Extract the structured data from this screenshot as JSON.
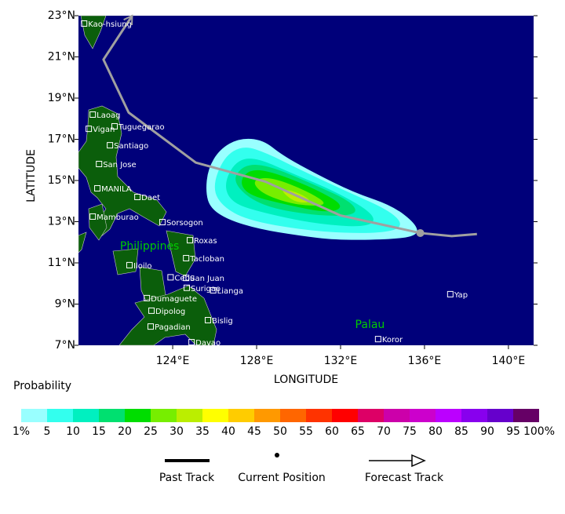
{
  "map": {
    "lonlim": [
      119.51,
      141.2
    ],
    "latlim": [
      7,
      23
    ],
    "lon_ticks": [
      {
        "value": 124,
        "label": "124°E"
      },
      {
        "value": 128,
        "label": "128°E"
      },
      {
        "value": 132,
        "label": "132°E"
      },
      {
        "value": 136,
        "label": "136°E"
      },
      {
        "value": 140,
        "label": "140°E"
      }
    ],
    "lat_ticks": [
      {
        "value": 7,
        "label": "7°N"
      },
      {
        "value": 9,
        "label": "9°N"
      },
      {
        "value": 11,
        "label": "11°N"
      },
      {
        "value": 13,
        "label": "13°N"
      },
      {
        "value": 15,
        "label": "15°N"
      },
      {
        "value": 17,
        "label": "17°N"
      },
      {
        "value": 19,
        "label": "19°N"
      },
      {
        "value": 21,
        "label": "21°N"
      },
      {
        "value": 23,
        "label": "23°N"
      }
    ],
    "x_label": "LONGITUDE",
    "y_label": "LATITUDE",
    "sea_color": "#00007a",
    "track_color": "#a0a0a0",
    "past_track": {
      "lon": [
        138.5,
        137.3,
        135.8
      ],
      "lat": [
        12.4,
        12.3,
        12.45
      ]
    },
    "current_position": {
      "lon": 135.8,
      "lat": 12.45
    },
    "forecast_track": {
      "lon": [
        135.8,
        132.0,
        128.4,
        125.1,
        121.9,
        120.7,
        122.07
      ],
      "lat": [
        12.45,
        13.3,
        14.95,
        15.87,
        18.3,
        20.87,
        23.0
      ]
    },
    "contours": [
      {
        "level": 1,
        "lon": [
          125.57,
          125.68,
          126.24,
          127.18,
          128.3,
          129.23,
          130.73,
          132.6,
          134.47,
          135.59,
          135.7,
          134.47,
          131.85,
          129.98,
          128.11,
          126.62,
          125.79
        ],
        "lat": [
          14.43,
          15.57,
          16.52,
          17.06,
          16.98,
          16.22,
          15.38,
          14.43,
          13.78,
          12.9,
          12.33,
          12.14,
          12.1,
          12.33,
          12.64,
          13.1,
          13.67
        ]
      },
      {
        "level": 5,
        "lon": [
          125.87,
          126.43,
          127.36,
          128.49,
          129.98,
          132.22,
          134.47,
          135.03,
          133.72,
          130.73,
          127.74,
          126.43
        ],
        "lat": [
          14.62,
          16.14,
          16.71,
          16.33,
          15.57,
          14.5,
          13.48,
          12.71,
          12.41,
          12.52,
          13.02,
          13.67
        ]
      },
      {
        "level": 10,
        "lon": [
          126.43,
          126.99,
          127.93,
          129.61,
          131.85,
          133.72,
          133.35,
          130.73,
          128.11,
          126.8
        ],
        "lat": [
          14.81,
          15.95,
          16.14,
          15.38,
          14.43,
          13.29,
          12.71,
          12.9,
          13.48,
          13.93
        ]
      },
      {
        "level": 15,
        "lon": [
          126.8,
          127.36,
          128.49,
          130.73,
          132.6,
          132.79,
          130.73,
          128.11
        ],
        "lat": [
          14.92,
          15.76,
          15.76,
          14.81,
          13.93,
          13.29,
          13.29,
          13.78
        ]
      },
      {
        "level": 20,
        "lon": [
          127.18,
          127.74,
          128.86,
          130.73,
          132.22,
          131.48,
          129.23,
          127.55
        ],
        "lat": [
          15.0,
          15.57,
          15.38,
          14.62,
          13.78,
          13.4,
          13.86,
          14.31
        ]
      },
      {
        "level": 25,
        "lon": [
          127.74,
          128.67,
          130.54,
          131.48,
          129.98,
          128.3
        ],
        "lat": [
          15.0,
          15.19,
          14.43,
          13.78,
          13.78,
          14.31
        ]
      },
      {
        "level": 30,
        "lon": [
          129.05,
          129.98,
          130.73,
          129.79
        ],
        "lat": [
          14.62,
          14.43,
          13.93,
          13.93
        ]
      }
    ],
    "cities": [
      {
        "name": "Kao-hsiung",
        "lon": 119.78,
        "lat": 22.62
      },
      {
        "name": "Laoag",
        "lon": 120.19,
        "lat": 18.2
      },
      {
        "name": "Tuguegarao",
        "lon": 121.23,
        "lat": 17.63
      },
      {
        "name": "Vigan",
        "lon": 120.0,
        "lat": 17.51
      },
      {
        "name": "Santiago",
        "lon": 121.01,
        "lat": 16.71
      },
      {
        "name": "San Jose",
        "lon": 120.49,
        "lat": 15.8
      },
      {
        "name": "MANILA",
        "lon": 120.41,
        "lat": 14.62
      },
      {
        "name": "Daet",
        "lon": 122.32,
        "lat": 14.2
      },
      {
        "name": "Mamburao",
        "lon": 120.19,
        "lat": 13.25
      },
      {
        "name": "Sorsogon",
        "lon": 123.51,
        "lat": 12.98
      },
      {
        "name": "Roxas",
        "lon": 124.82,
        "lat": 12.1
      },
      {
        "name": "Tacloban",
        "lon": 124.64,
        "lat": 11.23
      },
      {
        "name": "Iloilo",
        "lon": 121.94,
        "lat": 10.89
      },
      {
        "name": "Cebu",
        "lon": 123.9,
        "lat": 10.3
      },
      {
        "name": "San Juan",
        "lon": 124.64,
        "lat": 10.27
      },
      {
        "name": "Surigao",
        "lon": 124.67,
        "lat": 9.79
      },
      {
        "name": "Dumaguete",
        "lon": 122.77,
        "lat": 9.29
      },
      {
        "name": "Lianga",
        "lon": 125.93,
        "lat": 9.67
      },
      {
        "name": "Dipolog",
        "lon": 122.99,
        "lat": 8.68
      },
      {
        "name": "Bislig",
        "lon": 125.68,
        "lat": 8.22
      },
      {
        "name": "Pagadian",
        "lon": 122.95,
        "lat": 7.91
      },
      {
        "name": "Davao",
        "lon": 124.9,
        "lat": 7.15
      },
      {
        "name": "Yap",
        "lon": 137.23,
        "lat": 9.48
      },
      {
        "name": "Koror",
        "lon": 133.79,
        "lat": 7.3
      }
    ],
    "countries": [
      {
        "name": "Philippines",
        "lon": 122.9,
        "lat": 11.8
      },
      {
        "name": "Palau",
        "lon": 133.4,
        "lat": 8.0
      }
    ]
  },
  "legend": {
    "title": "Probability",
    "scale": [
      {
        "value": 1,
        "label": "1%"
      },
      5,
      10,
      15,
      20,
      25,
      30,
      35,
      40,
      45,
      50,
      55,
      60,
      65,
      70,
      75,
      80,
      85,
      90,
      95,
      {
        "value": 100,
        "label": "100%"
      }
    ],
    "colors": [
      "#99ffff",
      "#33ffee",
      "#00f0c0",
      "#00e070",
      "#00dd00",
      "#77ee00",
      "#bbee00",
      "#ffff00",
      "#ffcc00",
      "#ff9900",
      "#ff6600",
      "#ff3300",
      "#ff0000",
      "#dd0066",
      "#cc00aa",
      "#cc00cc",
      "#bb00ff",
      "#8800ee",
      "#6600cc",
      "#660066"
    ],
    "items": [
      "Past Track",
      "Current Position",
      "Forecast Track"
    ]
  }
}
